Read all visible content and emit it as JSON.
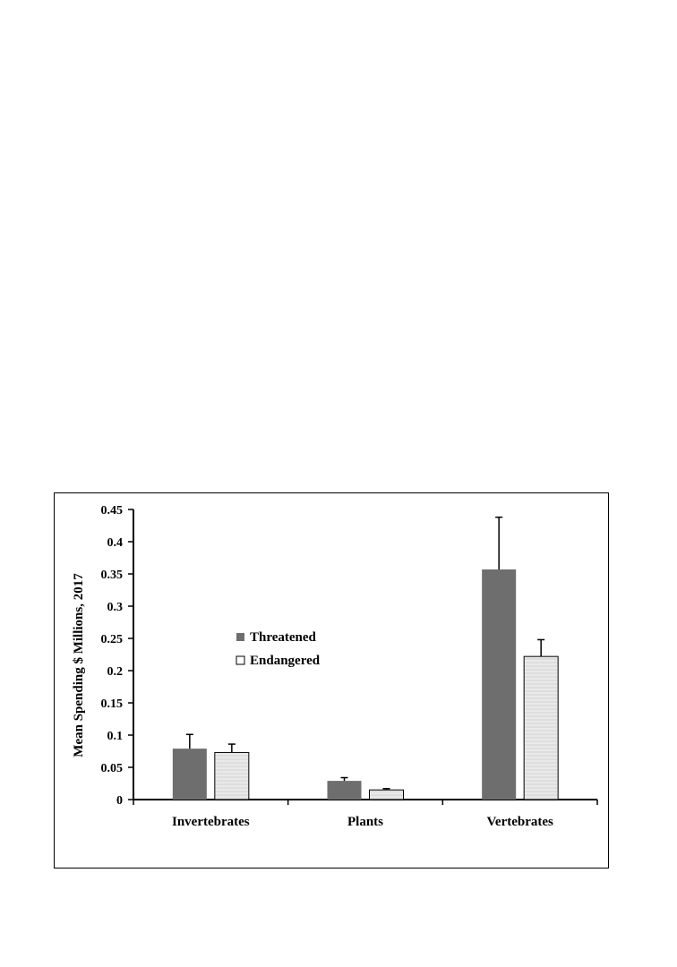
{
  "chart_data": {
    "type": "bar",
    "title": "",
    "xlabel": "",
    "ylabel": "Mean Spending $ Millions, 2017",
    "categories": [
      "Invertebrates",
      "Plants",
      "Vertebrates"
    ],
    "series": [
      {
        "name": "Threatened",
        "color": "#6e6e6e",
        "values": [
          0.079,
          0.029,
          0.357
        ],
        "error": [
          0.022,
          0.005,
          0.081
        ]
      },
      {
        "name": "Endangered",
        "color": "#e6e6e6",
        "values": [
          0.073,
          0.015,
          0.222
        ],
        "error": [
          0.013,
          0.002,
          0.026
        ]
      }
    ],
    "ylim": [
      0,
      0.45
    ],
    "yticks": [
      "0",
      "0.05",
      "0.1",
      "0.15",
      "0.2",
      "0.25",
      "0.3",
      "0.35",
      "0.4",
      "0.45"
    ],
    "grid": false,
    "legend_position": "center"
  }
}
